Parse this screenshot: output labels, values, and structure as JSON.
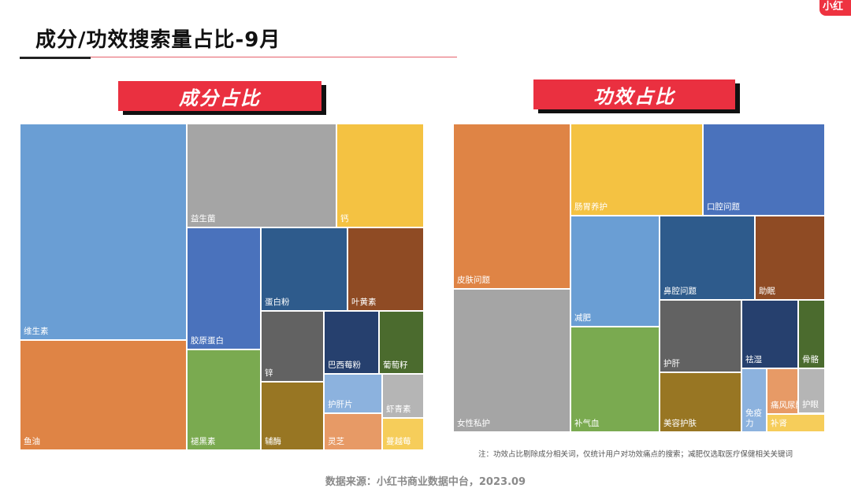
{
  "brand": {
    "label": "小红"
  },
  "header": {
    "title": "成分/功效搜索量占比-9月"
  },
  "note": "注：功效占比剔除成分相关词，仅统计用户对功效痛点的搜索；减肥仅选取医疗保健相关关键词",
  "source": "数据来源：小红书商业数据中台，2023.09",
  "chart_data": [
    {
      "type": "treemap",
      "title": "成分占比",
      "items": [
        {
          "name": "维生素",
          "color": "#6a9ed4"
        },
        {
          "name": "鱼油",
          "color": "#df8445"
        },
        {
          "name": "益生菌",
          "color": "#a5a5a5"
        },
        {
          "name": "钙",
          "color": "#f4c242"
        },
        {
          "name": "胶原蛋白",
          "color": "#4a72bc"
        },
        {
          "name": "蛋白粉",
          "color": "#2e5b8c"
        },
        {
          "name": "叶黄素",
          "color": "#8f4b24"
        },
        {
          "name": "锌",
          "color": "#626262"
        },
        {
          "name": "巴西莓粉",
          "color": "#26406e"
        },
        {
          "name": "葡萄籽",
          "color": "#4b6b2e"
        },
        {
          "name": "护肝片",
          "color": "#8cb2de"
        },
        {
          "name": "虾青素",
          "color": "#b5b5b5"
        },
        {
          "name": "灵芝",
          "color": "#e79a66"
        },
        {
          "name": "蔓越莓",
          "color": "#f6cd5a"
        },
        {
          "name": "辅酶",
          "color": "#987623"
        },
        {
          "name": "褪黑素",
          "color": "#7aaa50"
        }
      ]
    },
    {
      "type": "treemap",
      "title": "功效占比",
      "items": [
        {
          "name": "皮肤问题",
          "color": "#df8445"
        },
        {
          "name": "女性私护",
          "color": "#a5a5a5"
        },
        {
          "name": "肠胃养护",
          "color": "#f4c242"
        },
        {
          "name": "口腔问题",
          "color": "#4a72bc"
        },
        {
          "name": "减肥",
          "color": "#6a9ed4"
        },
        {
          "name": "补气血",
          "color": "#7aaa50"
        },
        {
          "name": "鼻腔问题",
          "color": "#2e5b8c"
        },
        {
          "name": "助眠",
          "color": "#8f4b24"
        },
        {
          "name": "护肝",
          "color": "#626262"
        },
        {
          "name": "美容护肤",
          "color": "#987623"
        },
        {
          "name": "祛湿",
          "color": "#26406e"
        },
        {
          "name": "骨骼",
          "color": "#4b6b2e"
        },
        {
          "name": "免疫力",
          "color": "#8cb2de"
        },
        {
          "name": "痛风尿酸",
          "color": "#e79a66"
        },
        {
          "name": "护眼",
          "color": "#b5b5b5"
        },
        {
          "name": "补肾",
          "color": "#f6cd5a"
        }
      ]
    }
  ]
}
